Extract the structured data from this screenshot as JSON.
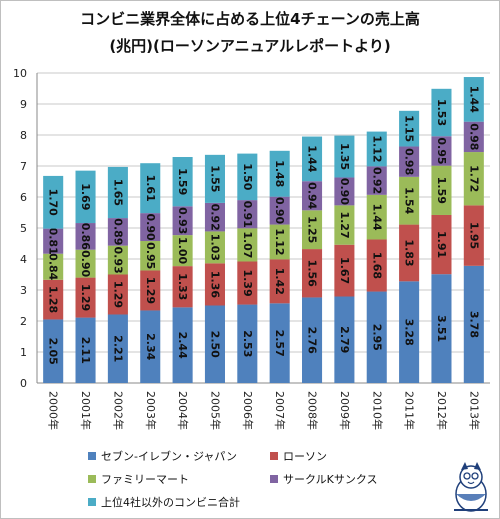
{
  "title_line1": "コンビニ業界全体に占める上位4チェーンの売上高",
  "title_line2": "(兆円)(ローソンアニュアルレポートより)",
  "chart_data": {
    "type": "bar",
    "stacked": true,
    "categories": [
      "2000年",
      "2001年",
      "2002年",
      "2003年",
      "2004年",
      "2005年",
      "2006年",
      "2007年",
      "2008年",
      "2009年",
      "2010年",
      "2011年",
      "2012年",
      "2013年"
    ],
    "series": [
      {
        "name": "セブン-イレブン・ジャパン",
        "color": "#4f81bd",
        "values": [
          2.05,
          2.11,
          2.21,
          2.34,
          2.44,
          2.5,
          2.53,
          2.57,
          2.76,
          2.79,
          2.95,
          3.28,
          3.51,
          3.78
        ]
      },
      {
        "name": "ローソン",
        "color": "#c0504d",
        "values": [
          1.28,
          1.29,
          1.29,
          1.29,
          1.33,
          1.36,
          1.39,
          1.42,
          1.56,
          1.67,
          1.68,
          1.83,
          1.91,
          1.95
        ]
      },
      {
        "name": "ファミリーマート",
        "color": "#9bbb59",
        "values": [
          0.84,
          0.9,
          0.93,
          0.95,
          1.0,
          1.03,
          1.07,
          1.12,
          1.25,
          1.27,
          1.44,
          1.54,
          1.59,
          1.72
        ]
      },
      {
        "name": "サークルKサンクス",
        "color": "#8064a2",
        "values": [
          0.81,
          0.86,
          0.89,
          0.9,
          0.93,
          0.92,
          0.91,
          0.9,
          0.94,
          0.9,
          0.92,
          0.98,
          0.95,
          0.98
        ]
      },
      {
        "name": "上位4社以外のコンビニ合計",
        "color": "#4bacc6",
        "values": [
          1.7,
          1.69,
          1.65,
          1.61,
          1.59,
          1.55,
          1.5,
          1.48,
          1.44,
          1.35,
          1.12,
          1.15,
          1.53,
          1.44
        ]
      }
    ],
    "yticks": [
      "0",
      "1",
      "2",
      "3",
      "4",
      "5",
      "6",
      "7",
      "8",
      "9",
      "10"
    ],
    "ylim": [
      0,
      10
    ],
    "grid": true,
    "legend_position": "bottom"
  }
}
